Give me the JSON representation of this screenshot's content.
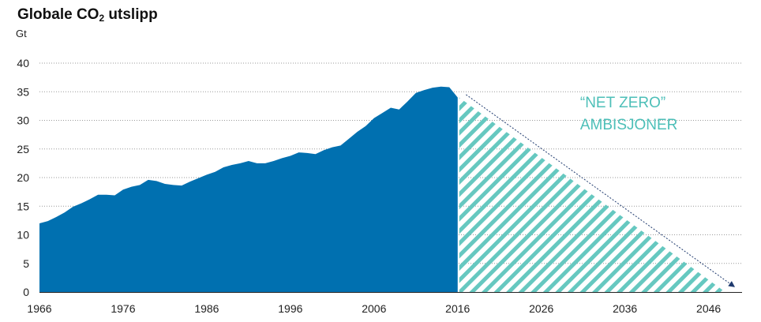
{
  "chart_data": {
    "type": "area",
    "title_prefix": "Globale CO",
    "title_sub": "2",
    "title_suffix": " utslipp",
    "unit": "Gt",
    "xlabel": "",
    "ylabel": "",
    "xlim": [
      1966,
      2050
    ],
    "ylim": [
      0,
      40
    ],
    "x_ticks": [
      1966,
      1976,
      1986,
      1996,
      2006,
      2016,
      2026,
      2036,
      2046
    ],
    "y_ticks": [
      0,
      5,
      10,
      15,
      20,
      25,
      30,
      35,
      40
    ],
    "grid": "horizontal dotted",
    "historical": {
      "x": [
        1966,
        1967,
        1968,
        1969,
        1970,
        1971,
        1972,
        1973,
        1974,
        1975,
        1976,
        1977,
        1978,
        1979,
        1980,
        1981,
        1982,
        1983,
        1984,
        1985,
        1986,
        1987,
        1988,
        1989,
        1990,
        1991,
        1992,
        1993,
        1994,
        1995,
        1996,
        1997,
        1998,
        1999,
        2000,
        2001,
        2002,
        2003,
        2004,
        2005,
        2006,
        2007,
        2008,
        2009,
        2010,
        2011,
        2012,
        2013,
        2014,
        2015,
        2016
      ],
      "y": [
        12.0,
        12.4,
        13.1,
        13.9,
        14.9,
        15.5,
        16.2,
        17.0,
        17.0,
        16.9,
        17.9,
        18.4,
        18.7,
        19.6,
        19.4,
        18.9,
        18.7,
        18.6,
        19.3,
        19.9,
        20.5,
        21.0,
        21.8,
        22.2,
        22.5,
        22.9,
        22.5,
        22.5,
        22.9,
        23.4,
        23.8,
        24.4,
        24.3,
        24.1,
        24.8,
        25.3,
        25.6,
        26.8,
        28.0,
        29.0,
        30.4,
        31.3,
        32.2,
        31.9,
        33.3,
        34.8,
        35.3,
        35.7,
        35.9,
        35.8,
        34.0
      ]
    },
    "projection": {
      "x": [
        2016,
        2048
      ],
      "y": [
        34.0,
        0
      ]
    },
    "trend_arrow": {
      "x": [
        2017,
        2049
      ],
      "y": [
        34.5,
        1.0
      ]
    },
    "annotation": {
      "line1": "“NET ZERO”",
      "line2": "AMBISJONER",
      "x": 2033,
      "y": 32
    },
    "colors": {
      "historical": "#0070B0",
      "projection": "#66C8C0",
      "arrow": "#1F3A6E",
      "annotation": "#4DBFB8"
    }
  }
}
